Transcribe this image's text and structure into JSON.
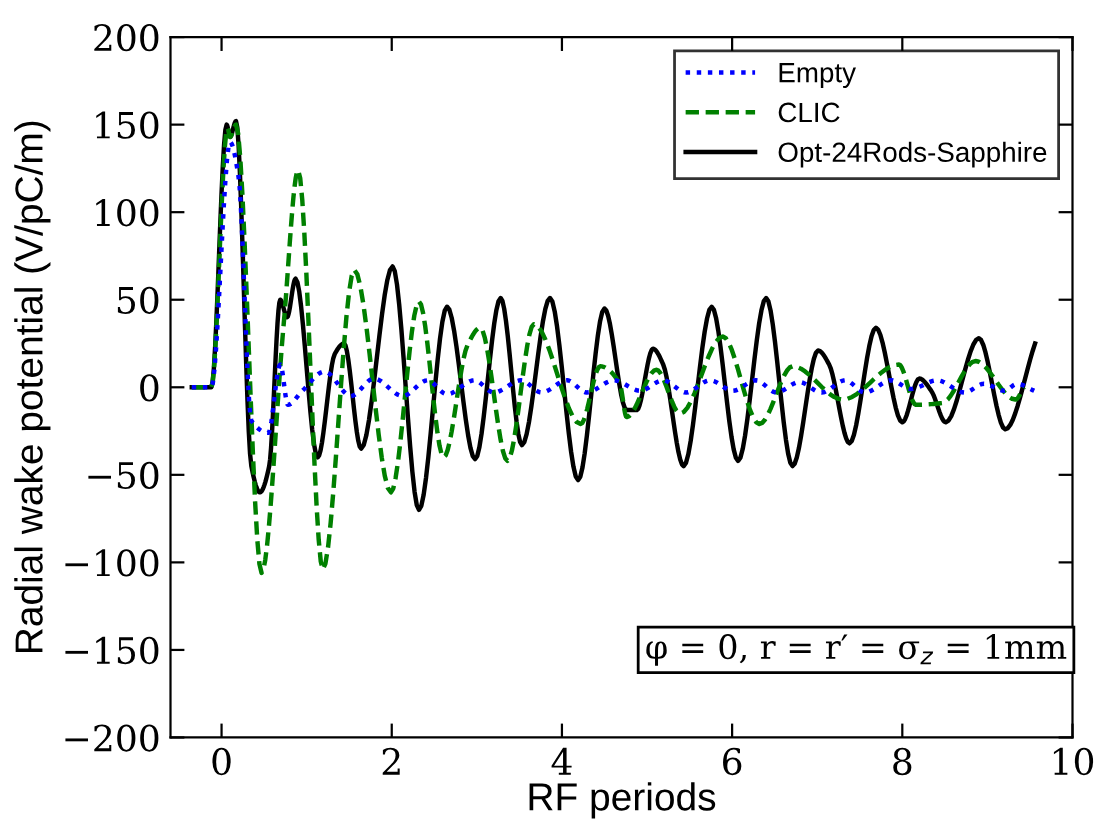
{
  "chart_data": {
    "type": "line",
    "xlabel": "RF periods",
    "ylabel": "Radial wake potential (V/pC/m)",
    "xlim": [
      -0.6,
      10
    ],
    "ylim": [
      -200,
      200
    ],
    "xticks": [
      0,
      2,
      4,
      6,
      8,
      10
    ],
    "yticks": [
      {
        "value": -200,
        "label": "−200"
      },
      {
        "value": -150,
        "label": "−150"
      },
      {
        "value": -100,
        "label": "−100"
      },
      {
        "value": -50,
        "label": "−50"
      },
      0,
      50,
      100,
      150,
      200
    ],
    "grid": false,
    "legend": "top right",
    "annotations": [
      "φ = 0, r = r′ = σ$_{z}$ = 1mm"
    ],
    "series": [
      {
        "name": "Empty",
        "color": "#0000ff",
        "line_style": "dotted",
        "x": [
          -0.35,
          -0.12,
          0.1,
          0.2,
          0.35,
          0.55,
          0.69,
          0.78,
          0.95,
          1.21,
          1.52,
          1.79,
          2.13,
          2.42,
          2.65,
          2.97,
          3.2,
          3.52,
          3.76,
          4.06,
          4.29,
          4.61,
          4.92,
          5.19,
          5.46,
          5.74,
          6.01,
          6.28,
          6.52,
          6.79,
          7.05,
          7.33,
          7.56,
          7.87,
          8.1,
          8.41,
          8.73,
          8.96,
          9.2,
          9.35,
          9.55
        ],
        "values": [
          0,
          0,
          140,
          120,
          -19,
          -26,
          13,
          -10,
          -2,
          9,
          -5,
          5,
          -5,
          4,
          -4,
          4,
          -3,
          4,
          -3,
          4,
          -3,
          4,
          -2,
          4,
          -3,
          4,
          -2,
          4,
          -3,
          3,
          -3,
          4,
          -3,
          4,
          -1,
          4,
          -3,
          2,
          -2,
          2,
          -2
        ]
      },
      {
        "name": "CLIC",
        "color": "#008000",
        "line_style": "dashed",
        "x": [
          -0.35,
          -0.12,
          0.07,
          0.1,
          0.17,
          0.47,
          0.73,
          0.9,
          1.19,
          1.56,
          1.99,
          2.32,
          2.61,
          2.89,
          3.04,
          3.36,
          3.67,
          4.22,
          4.45,
          4.68,
          4.76,
          5.11,
          5.39,
          5.89,
          6.32,
          6.71,
          7.3,
          7.96,
          8.16,
          8.47,
          8.86,
          9.33,
          9.43
        ],
        "values": [
          0,
          0,
          148,
          143,
          150,
          -106,
          36,
          124,
          -104,
          67,
          -60,
          49,
          -40,
          24,
          34,
          -42,
          36,
          -21,
          12,
          2,
          -17,
          10,
          -15,
          29,
          -21,
          12,
          -7,
          13,
          -10,
          -9,
          15,
          -7,
          0
        ]
      },
      {
        "name": "Opt-24Rods-Sapphire",
        "color": "#000000",
        "line_style": "solid",
        "x": [
          -0.35,
          -0.12,
          0.06,
          0.1,
          0.17,
          0.35,
          0.45,
          0.56,
          0.69,
          0.77,
          0.87,
          1.13,
          1.33,
          1.44,
          1.64,
          2.01,
          2.32,
          2.65,
          2.98,
          3.28,
          3.53,
          3.86,
          4.19,
          4.5,
          4.76,
          4.88,
          5.07,
          5.19,
          5.43,
          5.76,
          6.07,
          6.4,
          6.71,
          7.01,
          7.14,
          7.38,
          7.69,
          8.0,
          8.2,
          8.34,
          8.51,
          8.9,
          9.21,
          9.56
        ],
        "values": [
          0,
          0,
          150,
          143,
          152,
          -45,
          -60,
          -45,
          50,
          40,
          62,
          -40,
          19,
          25,
          -35,
          69,
          -70,
          46,
          -41,
          51,
          -33,
          51,
          -53,
          45,
          -13,
          -13,
          22,
          13,
          -45,
          46,
          -42,
          51,
          -45,
          21,
          13,
          -32,
          34,
          -20,
          5,
          -2,
          -20,
          28,
          -24,
          25
        ]
      }
    ]
  }
}
